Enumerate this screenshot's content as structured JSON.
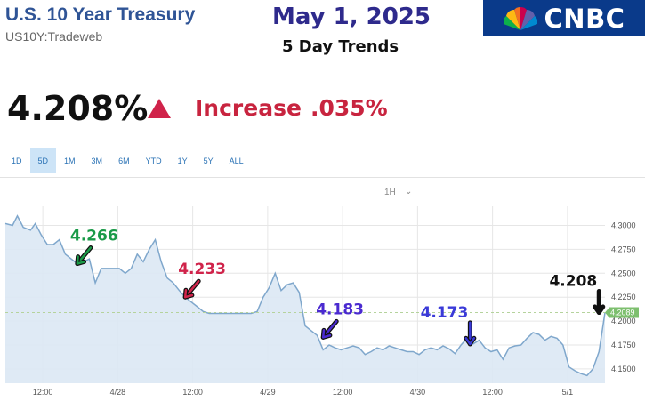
{
  "header": {
    "title": "U.S. 10 Year Treasury",
    "subtitle": "US10Y:Tradeweb",
    "date": "May 1, 2025",
    "trend_label": "5 Day Trends",
    "logo": "CNBC"
  },
  "quote": {
    "price": "4.208%",
    "change_label": "Increase",
    "change_value": ".035%",
    "direction_icon": "triangle-up-icon",
    "color_up": "#d0234a"
  },
  "tabs": [
    {
      "label": "1D",
      "active": false
    },
    {
      "label": "5D",
      "active": true
    },
    {
      "label": "1M",
      "active": false
    },
    {
      "label": "3M",
      "active": false
    },
    {
      "label": "6M",
      "active": false
    },
    {
      "label": "YTD",
      "active": false
    },
    {
      "label": "1Y",
      "active": false
    },
    {
      "label": "5Y",
      "active": false
    },
    {
      "label": "ALL",
      "active": false
    }
  ],
  "interval": "1H",
  "chart_data": {
    "type": "area",
    "x_tick_labels": [
      "12:00",
      "4/28",
      "12:00",
      "4/29",
      "12:00",
      "4/30",
      "12:00",
      "5/1"
    ],
    "y_ticks": [
      4.15,
      4.175,
      4.2,
      4.225,
      4.25,
      4.275,
      4.3
    ],
    "y_tick_labels": [
      "4.1500",
      "4.1750",
      "4.2000",
      "4.2250",
      "4.2500",
      "4.2750",
      "4.3000"
    ],
    "ylim": [
      4.135,
      4.32
    ],
    "x_range": [
      0,
      100
    ],
    "last_value_label": "4.2089",
    "last_value": 4.2089,
    "series": [
      {
        "x": [
          0,
          1.2,
          2.0,
          3.0,
          4.2,
          5.0,
          6.0,
          7.0,
          8.0,
          9.0,
          10.0,
          11.0,
          12.0,
          13.0,
          14.0,
          15.0,
          16.0,
          17.0,
          18.0,
          19.0,
          20.0,
          21.0,
          22.0,
          23.0,
          24.0,
          25.0,
          26.0,
          27.0,
          28.0,
          29.0,
          30.0,
          31.0,
          32.0,
          33.0,
          34.0,
          35.0,
          36.0,
          37.0,
          38.0,
          39.0,
          40.0,
          41.0,
          42.0,
          43.0,
          44.0,
          45.0,
          46.0,
          47.0,
          48.0,
          49.0,
          50.0,
          51.0,
          52.0,
          53.0,
          54.0,
          55.0,
          56.0,
          57.0,
          58.0,
          59.0,
          60.0,
          61.0,
          62.0,
          63.0,
          64.0,
          65.0,
          66.0,
          67.0,
          68.0,
          69.0,
          70.0,
          71.0,
          72.0,
          73.0,
          74.0,
          75.0,
          76.0,
          77.0,
          78.0,
          79.0,
          80.0,
          81.0,
          82.0,
          83.0,
          84.0,
          85.0,
          86.0,
          87.0,
          88.0,
          89.0,
          90.0,
          91.0,
          92.0,
          93.0,
          94.0,
          95.0,
          96.0,
          97.0,
          98.0,
          99.0,
          100.0
        ],
        "y": [
          4.302,
          4.3,
          4.31,
          4.298,
          4.295,
          4.302,
          4.29,
          4.28,
          4.28,
          4.285,
          4.27,
          4.265,
          4.26,
          4.262,
          4.265,
          4.24,
          4.255,
          4.255,
          4.255,
          4.255,
          4.25,
          4.255,
          4.27,
          4.262,
          4.275,
          4.285,
          4.262,
          4.245,
          4.24,
          4.232,
          4.225,
          4.22,
          4.215,
          4.21,
          4.208,
          4.208,
          4.208,
          4.208,
          4.208,
          4.208,
          4.208,
          4.208,
          4.21,
          4.225,
          4.235,
          4.25,
          4.232,
          4.238,
          4.24,
          4.23,
          4.195,
          4.19,
          4.185,
          4.17,
          4.175,
          4.172,
          4.17,
          4.172,
          4.174,
          4.172,
          4.165,
          4.168,
          4.172,
          4.17,
          4.174,
          4.172,
          4.17,
          4.168,
          4.168,
          4.165,
          4.17,
          4.172,
          4.17,
          4.174,
          4.171,
          4.166,
          4.175,
          4.182,
          4.176,
          4.18,
          4.172,
          4.168,
          4.17,
          4.16,
          4.172,
          4.174,
          4.175,
          4.182,
          4.188,
          4.186,
          4.18,
          4.184,
          4.182,
          4.175,
          4.152,
          4.148,
          4.145,
          4.143,
          4.15,
          4.168,
          4.2089
        ]
      }
    ],
    "annotations": [
      {
        "label": "4.266",
        "color": "#1a9a48",
        "x": 12.0,
        "y": 4.26,
        "arrow": "down-left",
        "icon": "arrow-down-left-icon"
      },
      {
        "label": "4.233",
        "color": "#d0234a",
        "x": 30.0,
        "y": 4.225,
        "arrow": "down-left",
        "icon": "arrow-down-left-icon"
      },
      {
        "label": "4.183",
        "color": "#4a2ad0",
        "x": 53.0,
        "y": 4.183,
        "arrow": "down-left",
        "icon": "arrow-down-left-icon"
      },
      {
        "label": "4.173",
        "color": "#3a3ad8",
        "x": 77.5,
        "y": 4.176,
        "arrow": "down",
        "icon": "arrow-down-icon"
      },
      {
        "label": "4.208",
        "color": "#111111",
        "x": 99.0,
        "y": 4.2089,
        "arrow": "down",
        "icon": "arrow-down-icon"
      }
    ],
    "colors": {
      "line": "#7fa7cc",
      "fill": "#dbe8f4",
      "grid": "#e6e6e6",
      "last_value_bg": "#7dbf6e"
    }
  }
}
